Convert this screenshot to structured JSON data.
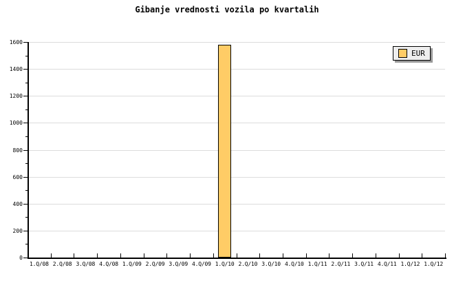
{
  "title": "Gibanje vrednosti vozila po kvartalih",
  "legend": {
    "position": "top-right",
    "items": [
      {
        "label": "EUR",
        "swatch_color": "#ffcc66"
      }
    ]
  },
  "chart_data": {
    "type": "bar",
    "title": "Gibanje vrednosti vozila po kvartalih",
    "xlabel": "",
    "ylabel": "",
    "categories": [
      "1.Q/08",
      "2.Q/08",
      "3.Q/08",
      "4.Q/08",
      "1.Q/09",
      "2.Q/09",
      "3.Q/09",
      "4.Q/09",
      "1.Q/10",
      "2.Q/10",
      "3.Q/10",
      "4.Q/10",
      "1.Q/11",
      "2.Q/11",
      "3.Q/11",
      "4.Q/11",
      "1.Q/12",
      "1.Q/12"
    ],
    "series": [
      {
        "name": "EUR",
        "values": [
          null,
          null,
          null,
          null,
          null,
          null,
          null,
          null,
          1580,
          null,
          null,
          null,
          null,
          null,
          null,
          null,
          null,
          null
        ]
      }
    ],
    "ylim": [
      0,
      1600
    ],
    "ytick_major": 200,
    "ytick_minor": 100,
    "ytick_labels": [
      "0",
      "200",
      "400",
      "600",
      "800",
      "1000",
      "1200",
      "1400",
      "1600"
    ],
    "grid": "horizontal-major",
    "legend_position": "top-right",
    "colors": {
      "bar_fill": "#ffcc66",
      "bar_border": "#000000",
      "grid": "#dcdcdc",
      "axis": "#000000",
      "text": "#000000",
      "legend_bg": "#eeeeee",
      "legend_shadow": "#999999",
      "background": "#ffffff"
    }
  }
}
